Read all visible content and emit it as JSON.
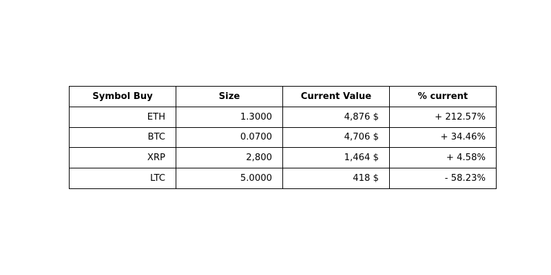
{
  "chart_data": {
    "type": "table",
    "columns": [
      "Symbol Buy",
      "Size",
      "Current Value",
      "% current"
    ],
    "rows": [
      [
        "ETH",
        "1.3000",
        "4,876 $",
        "+ 212.57%"
      ],
      [
        "BTC",
        "0.0700",
        "4,706 $",
        "+ 34.46%"
      ],
      [
        "XRP",
        "2,800",
        "1,464 $",
        "+ 4.58%"
      ],
      [
        "LTC",
        "5.0000",
        "418 $",
        "- 58.23%"
      ]
    ]
  }
}
